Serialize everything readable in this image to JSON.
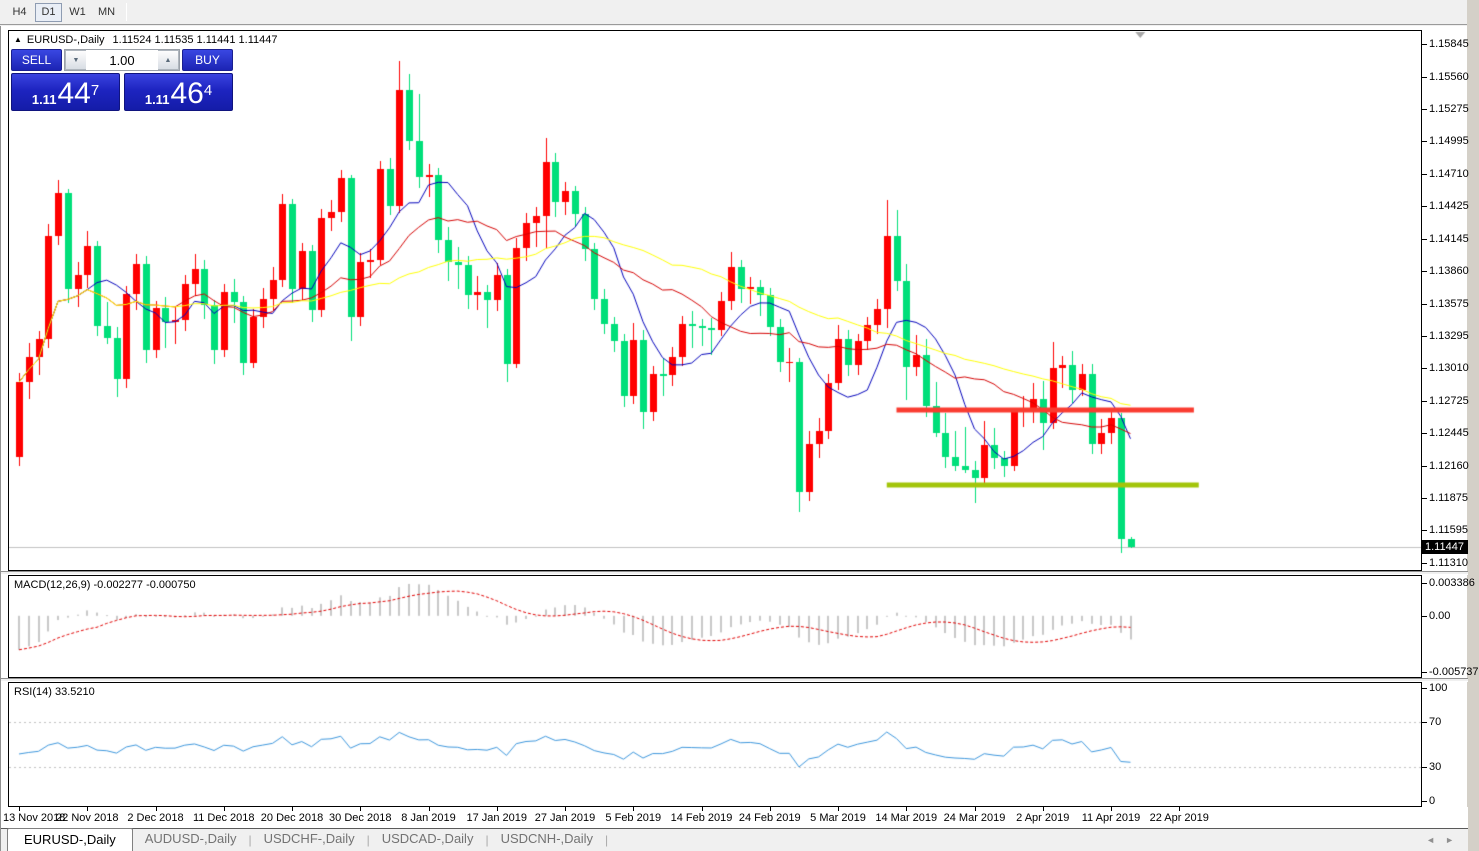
{
  "toolbar": {
    "timeframes": [
      {
        "label": "H4",
        "active": false
      },
      {
        "label": "D1",
        "active": true
      },
      {
        "label": "W1",
        "active": false
      },
      {
        "label": "MN",
        "active": false
      }
    ]
  },
  "chart_header": {
    "collapse_icon": "▲",
    "title": "EURUSD-,Daily",
    "ohlc_text": "1.11524 1.11535 1.11441 1.11447"
  },
  "trade_panel": {
    "sell_label": "SELL",
    "buy_label": "BUY",
    "volume_value": "1.00",
    "spinner_down": "▼",
    "spinner_up": "▲",
    "sell_price": {
      "prefix": "1.11",
      "main": "44",
      "sup": "7"
    },
    "buy_price": {
      "prefix": "1.11",
      "main": "46",
      "sup": "4"
    }
  },
  "price_axis": {
    "ticks": [
      "1.15845",
      "1.15560",
      "1.15275",
      "1.14995",
      "1.14710",
      "1.14425",
      "1.14145",
      "1.13860",
      "1.13575",
      "1.13295",
      "1.13010",
      "1.12725",
      "1.12445",
      "1.12160",
      "1.11875",
      "1.11595",
      "1.11310"
    ],
    "current_price_tag": "1.11447"
  },
  "macd_panel": {
    "label": "MACD(12,26,9)",
    "values_text": "-0.002277 -0.000750",
    "axis_ticks": [
      {
        "text": "0.003386",
        "value": 0.003386
      },
      {
        "text": "0.00",
        "value": 0
      },
      {
        "text": "-0.005737",
        "value": -0.005737
      }
    ]
  },
  "rsi_panel": {
    "label": "RSI(14)",
    "value_text": "33.5210",
    "axis_ticks": [
      {
        "text": "100",
        "value": 100
      },
      {
        "text": "70",
        "value": 70
      },
      {
        "text": "30",
        "value": 30
      },
      {
        "text": "0",
        "value": 0
      }
    ]
  },
  "date_axis": {
    "labels": [
      "13 Nov 2018",
      "22 Nov 2018",
      "2 Dec 2018",
      "11 Dec 2018",
      "20 Dec 2018",
      "30 Dec 2018",
      "8 Jan 2019",
      "17 Jan 2019",
      "27 Jan 2019",
      "5 Feb 2019",
      "14 Feb 2019",
      "24 Feb 2019",
      "5 Mar 2019",
      "14 Mar 2019",
      "24 Mar 2019",
      "2 Apr 2019",
      "11 Apr 2019",
      "22 Apr 2019"
    ],
    "candles_per_tick": 7
  },
  "tabs": {
    "items": [
      {
        "label": "EURUSD-,Daily",
        "active": true
      },
      {
        "label": "AUDUSD-,Daily",
        "active": false
      },
      {
        "label": "USDCHF-,Daily",
        "active": false
      },
      {
        "label": "USDCAD-,Daily",
        "active": false
      },
      {
        "label": "USDCNH-,Daily",
        "active": false
      }
    ],
    "scroll_left_icon": "◄",
    "scroll_right_icon": "►"
  },
  "chart_data": {
    "type": "candlestick",
    "symbol": "EURUSD-",
    "timeframe": "Daily",
    "bull_color": "#FF0000",
    "bear_color": "#00DF7A",
    "price_range": [
      1.11249,
      1.15958
    ],
    "current_price": 1.11447,
    "current_price_line_color": "#C0C0C0",
    "candles": [
      [
        1.1224,
        1.1297,
        1.1216,
        1.1289
      ],
      [
        1.1289,
        1.1323,
        1.1274,
        1.1311
      ],
      [
        1.1311,
        1.1334,
        1.1295,
        1.1327
      ],
      [
        1.1327,
        1.1427,
        1.1319,
        1.1417
      ],
      [
        1.1417,
        1.1466,
        1.1409,
        1.1454
      ],
      [
        1.1454,
        1.1458,
        1.1358,
        1.137
      ],
      [
        1.137,
        1.1394,
        1.1355,
        1.1383
      ],
      [
        1.1383,
        1.1421,
        1.1371,
        1.1408
      ],
      [
        1.1408,
        1.1412,
        1.1329,
        1.1338
      ],
      [
        1.1338,
        1.1359,
        1.1322,
        1.1328
      ],
      [
        1.1328,
        1.1337,
        1.1276,
        1.1292
      ],
      [
        1.1292,
        1.1373,
        1.1284,
        1.1366
      ],
      [
        1.1366,
        1.1401,
        1.1352,
        1.1392
      ],
      [
        1.1392,
        1.1399,
        1.1306,
        1.1317
      ],
      [
        1.1317,
        1.136,
        1.131,
        1.1354
      ],
      [
        1.1354,
        1.1363,
        1.1319,
        1.1342
      ],
      [
        1.1342,
        1.1355,
        1.1322,
        1.1343
      ],
      [
        1.1343,
        1.1383,
        1.1334,
        1.1375
      ],
      [
        1.1375,
        1.1401,
        1.1364,
        1.1388
      ],
      [
        1.1388,
        1.1396,
        1.1344,
        1.1356
      ],
      [
        1.1356,
        1.1361,
        1.1305,
        1.1317
      ],
      [
        1.1317,
        1.1375,
        1.1311,
        1.1368
      ],
      [
        1.1368,
        1.1379,
        1.1341,
        1.1359
      ],
      [
        1.1359,
        1.1364,
        1.1295,
        1.1306
      ],
      [
        1.1306,
        1.1353,
        1.1301,
        1.1346
      ],
      [
        1.1346,
        1.1371,
        1.1336,
        1.1362
      ],
      [
        1.1362,
        1.139,
        1.1351,
        1.1378
      ],
      [
        1.1378,
        1.1453,
        1.1372,
        1.1445
      ],
      [
        1.1445,
        1.1449,
        1.1358,
        1.137
      ],
      [
        1.137,
        1.1411,
        1.1361,
        1.1404
      ],
      [
        1.1404,
        1.1409,
        1.1342,
        1.1352
      ],
      [
        1.1352,
        1.144,
        1.1346,
        1.1432
      ],
      [
        1.1432,
        1.1448,
        1.1421,
        1.1438
      ],
      [
        1.1438,
        1.1474,
        1.1429,
        1.1467
      ],
      [
        1.1467,
        1.147,
        1.1325,
        1.1346
      ],
      [
        1.1346,
        1.1402,
        1.1338,
        1.1394
      ],
      [
        1.1394,
        1.1405,
        1.138,
        1.1396
      ],
      [
        1.1396,
        1.1482,
        1.1391,
        1.1475
      ],
      [
        1.1475,
        1.1485,
        1.1435,
        1.1443
      ],
      [
        1.1443,
        1.157,
        1.1437,
        1.1544
      ],
      [
        1.1544,
        1.1558,
        1.1492,
        1.15
      ],
      [
        1.15,
        1.1541,
        1.1459,
        1.1468
      ],
      [
        1.1468,
        1.148,
        1.1451,
        1.147
      ],
      [
        1.147,
        1.1476,
        1.1402,
        1.1413
      ],
      [
        1.1413,
        1.1425,
        1.1377,
        1.1394
      ],
      [
        1.1394,
        1.1407,
        1.137,
        1.1391
      ],
      [
        1.1391,
        1.1399,
        1.1353,
        1.1365
      ],
      [
        1.1365,
        1.1382,
        1.1352,
        1.1368
      ],
      [
        1.1368,
        1.1374,
        1.1336,
        1.1361
      ],
      [
        1.1361,
        1.1393,
        1.1351,
        1.1383
      ],
      [
        1.1383,
        1.1388,
        1.1289,
        1.1305
      ],
      [
        1.1305,
        1.1415,
        1.1301,
        1.1406
      ],
      [
        1.1406,
        1.1437,
        1.1395,
        1.1428
      ],
      [
        1.1428,
        1.1442,
        1.1407,
        1.1434
      ],
      [
        1.1434,
        1.1502,
        1.1406,
        1.1481
      ],
      [
        1.1481,
        1.1489,
        1.1433,
        1.1446
      ],
      [
        1.1446,
        1.1464,
        1.1435,
        1.1456
      ],
      [
        1.1456,
        1.146,
        1.1425,
        1.1436
      ],
      [
        1.1436,
        1.1442,
        1.1395,
        1.1405
      ],
      [
        1.1405,
        1.1411,
        1.1352,
        1.1362
      ],
      [
        1.1362,
        1.137,
        1.1331,
        1.134
      ],
      [
        1.134,
        1.1346,
        1.1315,
        1.1325
      ],
      [
        1.1325,
        1.1331,
        1.1267,
        1.1277
      ],
      [
        1.1277,
        1.1341,
        1.127,
        1.1326
      ],
      [
        1.1326,
        1.1335,
        1.1248,
        1.1263
      ],
      [
        1.1263,
        1.1303,
        1.1255,
        1.1296
      ],
      [
        1.1296,
        1.131,
        1.1277,
        1.1295
      ],
      [
        1.1295,
        1.132,
        1.1286,
        1.1311
      ],
      [
        1.1311,
        1.1347,
        1.1303,
        1.134
      ],
      [
        1.134,
        1.1351,
        1.1319,
        1.1338
      ],
      [
        1.1338,
        1.1344,
        1.1321,
        1.1336
      ],
      [
        1.1336,
        1.1345,
        1.1313,
        1.1335
      ],
      [
        1.1335,
        1.1368,
        1.1329,
        1.136
      ],
      [
        1.136,
        1.1403,
        1.1352,
        1.139
      ],
      [
        1.139,
        1.1396,
        1.1358,
        1.137
      ],
      [
        1.137,
        1.1381,
        1.1357,
        1.1372
      ],
      [
        1.1372,
        1.1378,
        1.1347,
        1.1365
      ],
      [
        1.1365,
        1.1371,
        1.1329,
        1.1337
      ],
      [
        1.1337,
        1.1344,
        1.1298,
        1.1307
      ],
      [
        1.1307,
        1.1319,
        1.1289,
        1.1307
      ],
      [
        1.1307,
        1.131,
        1.1176,
        1.1193
      ],
      [
        1.1193,
        1.1246,
        1.1185,
        1.1235
      ],
      [
        1.1235,
        1.1258,
        1.1223,
        1.1246
      ],
      [
        1.1246,
        1.1296,
        1.1239,
        1.1288
      ],
      [
        1.1288,
        1.1339,
        1.1282,
        1.1327
      ],
      [
        1.1327,
        1.1335,
        1.1294,
        1.1304
      ],
      [
        1.1304,
        1.1331,
        1.1295,
        1.1325
      ],
      [
        1.1325,
        1.1346,
        1.1317,
        1.1339
      ],
      [
        1.1339,
        1.1362,
        1.1331,
        1.1353
      ],
      [
        1.1353,
        1.1448,
        1.1336,
        1.1417
      ],
      [
        1.1417,
        1.1439,
        1.1369,
        1.1377
      ],
      [
        1.1377,
        1.1392,
        1.1273,
        1.1302
      ],
      [
        1.1302,
        1.133,
        1.1294,
        1.1313
      ],
      [
        1.1313,
        1.1327,
        1.1259,
        1.1268
      ],
      [
        1.1268,
        1.1289,
        1.1241,
        1.1245
      ],
      [
        1.1245,
        1.1262,
        1.1214,
        1.1224
      ],
      [
        1.1224,
        1.1246,
        1.1211,
        1.1216
      ],
      [
        1.1216,
        1.125,
        1.121,
        1.1212
      ],
      [
        1.1212,
        1.122,
        1.1183,
        1.1205
      ],
      [
        1.1205,
        1.1255,
        1.1201,
        1.1234
      ],
      [
        1.1234,
        1.1249,
        1.1213,
        1.1223
      ],
      [
        1.1223,
        1.1229,
        1.1206,
        1.1216
      ],
      [
        1.1216,
        1.1266,
        1.1211,
        1.1263
      ],
      [
        1.1263,
        1.1277,
        1.125,
        1.1264
      ],
      [
        1.1264,
        1.1288,
        1.1253,
        1.1274
      ],
      [
        1.1274,
        1.129,
        1.123,
        1.1253
      ],
      [
        1.1253,
        1.1324,
        1.1248,
        1.1301
      ],
      [
        1.1301,
        1.1312,
        1.1284,
        1.1304
      ],
      [
        1.1304,
        1.1316,
        1.1271,
        1.1282
      ],
      [
        1.1282,
        1.1305,
        1.1277,
        1.1296
      ],
      [
        1.1296,
        1.1305,
        1.1226,
        1.1235
      ],
      [
        1.1235,
        1.1257,
        1.1226,
        1.1245
      ],
      [
        1.1245,
        1.1264,
        1.1235,
        1.1258
      ],
      [
        1.1258,
        1.1262,
        1.114,
        1.1152
      ],
      [
        1.11524,
        1.11535,
        1.11441,
        1.11447
      ]
    ],
    "moving_averages": [
      {
        "period": 8,
        "color": "#0000BB"
      },
      {
        "period": 17,
        "color": "#D40000"
      },
      {
        "period": 34,
        "color": "#FFFF00"
      }
    ],
    "levels": [
      {
        "name": "resistance",
        "price": 1.1265,
        "color": "#FA3C30",
        "thickness": 5,
        "from_index": 90,
        "to_index": 120.5
      },
      {
        "name": "support",
        "price": 1.1199,
        "color": "#A3C50A",
        "thickness": 5,
        "from_index": 89,
        "to_index": 121
      }
    ],
    "shift_marker_index": 115,
    "macd": {
      "fast": 12,
      "slow": 26,
      "signal": 9,
      "display_range": [
        -0.0063,
        0.0041
      ],
      "histogram_color": "#C8C8C8",
      "signal_color": "#E00000",
      "last_values": [
        -0.002277,
        -0.00075
      ]
    },
    "rsi": {
      "period": 14,
      "display_range": [
        -4,
        104
      ],
      "line_color": "#3C96DC",
      "levels": [
        70,
        30
      ],
      "level_color": "#C0C0C0",
      "last_value": 33.521
    }
  }
}
